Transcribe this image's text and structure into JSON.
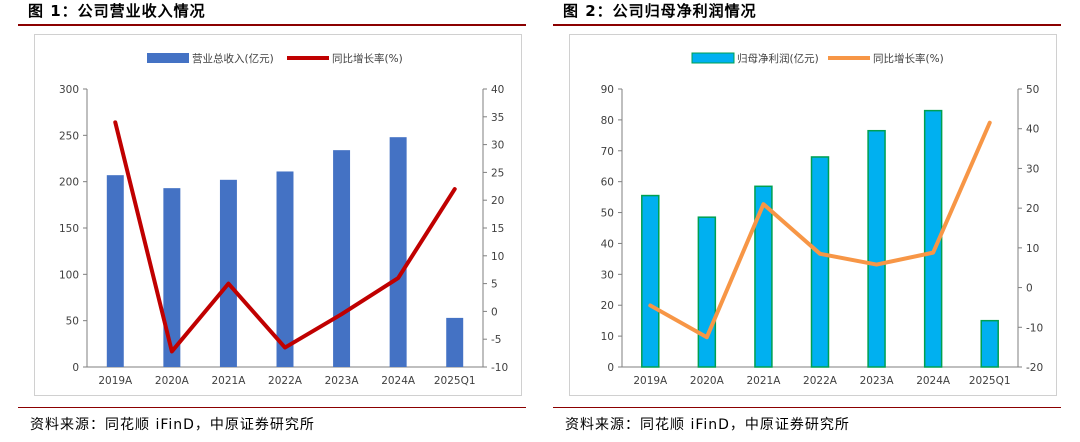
{
  "figures": [
    {
      "id": "left",
      "title": "图 1：公司营业收入情况",
      "source": "资料来源：同花顺 iFinD，中原证券研究所"
    },
    {
      "id": "right",
      "title": "图 2：公司归母净利润情况",
      "source": "资料来源：同花顺 iFinD，中原证券研究所"
    }
  ],
  "chart_data": [
    {
      "type": "bar",
      "title": "",
      "categories": [
        "2019A",
        "2020A",
        "2021A",
        "2022A",
        "2023A",
        "2024A",
        "2025Q1"
      ],
      "series": [
        {
          "name": "营业总收入(亿元)",
          "type": "bar",
          "axis": "left",
          "values": [
            207,
            193,
            202,
            211,
            234,
            248,
            53
          ],
          "color": "#4472C4"
        },
        {
          "name": "同比增长率(%)",
          "type": "line",
          "axis": "right",
          "values": [
            34.0,
            -7.2,
            5.0,
            -6.5,
            -0.5,
            6.0,
            22.0
          ],
          "color": "#C00000"
        }
      ],
      "ylim_left": [
        0,
        300
      ],
      "yticks_left": [
        0,
        50,
        100,
        150,
        200,
        250,
        300
      ],
      "ylim_right": [
        -10,
        40
      ],
      "yticks_right": [
        -10,
        -5,
        0,
        5,
        10,
        15,
        20,
        25,
        30,
        35,
        40
      ],
      "legend": "top-center",
      "grid": false
    },
    {
      "type": "bar",
      "title": "",
      "categories": [
        "2019A",
        "2020A",
        "2021A",
        "2022A",
        "2023A",
        "2024A",
        "2025Q1"
      ],
      "series": [
        {
          "name": "归母净利润(亿元)",
          "type": "bar",
          "axis": "left",
          "values": [
            55.5,
            48.5,
            58.5,
            68.0,
            76.5,
            83.0,
            15.0
          ],
          "color": "#00B0F0",
          "edge": "#00A050"
        },
        {
          "name": "同比增长率(%)",
          "type": "line",
          "axis": "right",
          "values": [
            -4.5,
            -12.5,
            21.0,
            8.5,
            5.8,
            8.8,
            41.5
          ],
          "color": "#F79646"
        }
      ],
      "ylim_left": [
        0,
        90
      ],
      "yticks_left": [
        0,
        10,
        20,
        30,
        40,
        50,
        60,
        70,
        80,
        90
      ],
      "ylim_right": [
        -20,
        50
      ],
      "yticks_right": [
        -20,
        -10,
        0,
        10,
        20,
        30,
        40,
        50
      ],
      "legend": "top-center",
      "grid": false
    }
  ]
}
